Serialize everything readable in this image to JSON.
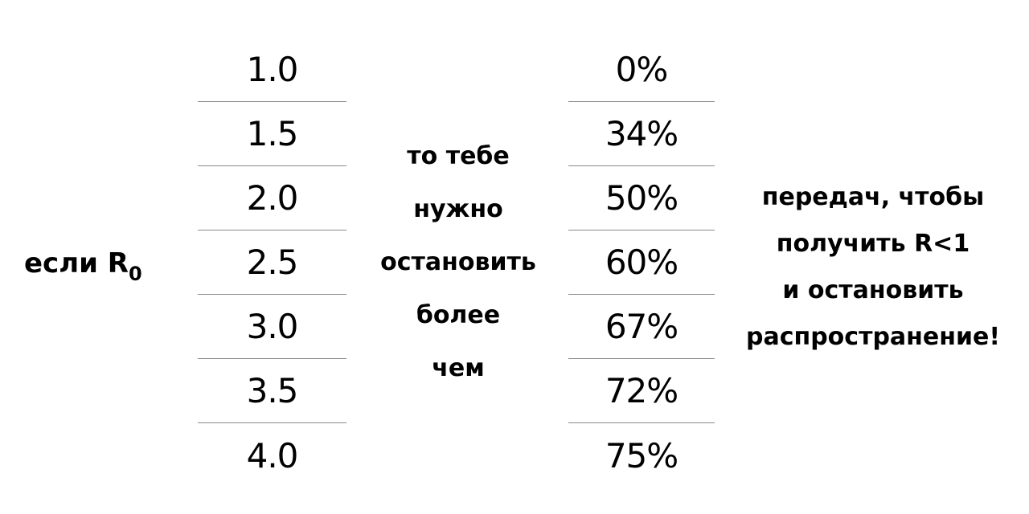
{
  "prefix": {
    "text": "если R",
    "subscript": "0"
  },
  "r0_values": [
    "1.0",
    "1.5",
    "2.0",
    "2.5",
    "3.0",
    "3.5",
    "4.0"
  ],
  "middle_text": [
    "то тебе",
    "нужно",
    "остановить",
    "более",
    "чем"
  ],
  "percentages": [
    "0%",
    "34%",
    "50%",
    "60%",
    "67%",
    "72%",
    "75%"
  ],
  "right_text": [
    "передач, чтобы",
    "получить R<1",
    "и остановить",
    "распространение!"
  ]
}
